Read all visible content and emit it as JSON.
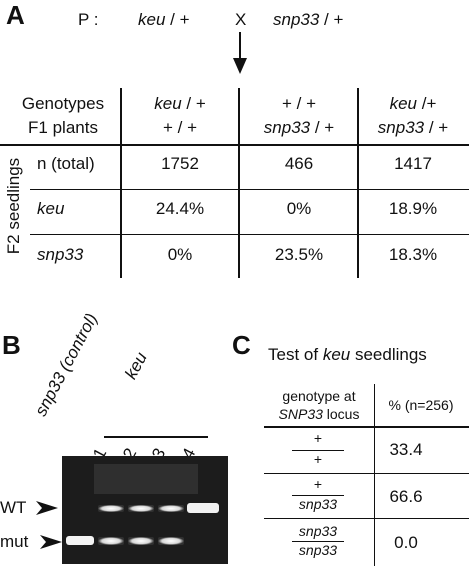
{
  "panelA": {
    "letter": "A",
    "cross": {
      "p_label": "P :",
      "parent1_a": "keu",
      "parent1_b": " / +",
      "x": "X",
      "parent2_a": "snp33",
      "parent2_b": " / +"
    },
    "header_row1": "Genotypes",
    "header_row2": "F1 plants",
    "col1": {
      "top_a": "keu",
      "top_b": " / +",
      "bottom": "+ / +"
    },
    "col2": {
      "top": "+ / +",
      "bottom_a": "snp33",
      "bottom_b": " / +"
    },
    "col3": {
      "top_a": "keu",
      "top_b": " /+",
      "bottom_a": "snp33",
      "bottom_b": " / +"
    },
    "side_label": "F2 seedlings",
    "rows": [
      {
        "label": "n (total)",
        "italic": false,
        "values": [
          "1752",
          "466",
          "1417"
        ]
      },
      {
        "label": "keu",
        "italic": true,
        "values": [
          "24.4%",
          "0%",
          "18.9%"
        ]
      },
      {
        "label": "snp33",
        "italic": true,
        "values": [
          "0%",
          "23.5%",
          "18.3%"
        ]
      }
    ]
  },
  "panelB": {
    "letter": "B",
    "control_label": "snp33 (control)",
    "group_label": "keu",
    "lanes": [
      "1",
      "2",
      "3",
      "4"
    ],
    "wt_label": "WT",
    "mut_label": "mut"
  },
  "panelC": {
    "letter": "C",
    "title_a": "Test of ",
    "title_b": "keu",
    "title_c": " seedlings",
    "header_left_1": "genotype at",
    "header_left_2_a": "SNP33",
    "header_left_2_b": " locus",
    "header_right": "% (n=256)",
    "rows": [
      {
        "num": "+",
        "den": "+",
        "value": "33.4"
      },
      {
        "num": "+",
        "den": "snp33",
        "value": "66.6"
      },
      {
        "num": "snp33",
        "den": "snp33",
        "value": "0.0"
      }
    ]
  }
}
